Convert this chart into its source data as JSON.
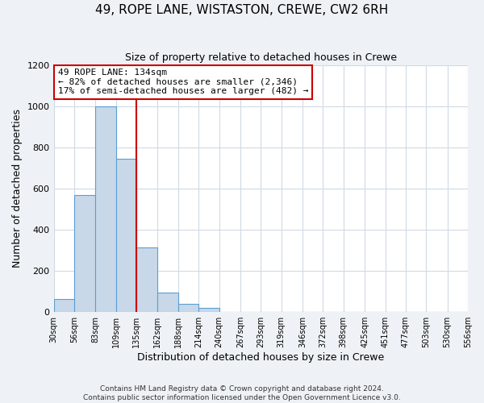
{
  "title": "49, ROPE LANE, WISTASTON, CREWE, CW2 6RH",
  "subtitle": "Size of property relative to detached houses in Crewe",
  "xlabel": "Distribution of detached houses by size in Crewe",
  "ylabel": "Number of detached properties",
  "bar_color": "#c8d8e8",
  "bar_edge_color": "#5a9fd4",
  "bin_edges": [
    30,
    56,
    83,
    109,
    135,
    162,
    188,
    214,
    240,
    267,
    293,
    319,
    346,
    372,
    398,
    425,
    451,
    477,
    503,
    530,
    556
  ],
  "bin_labels": [
    "30sqm",
    "56sqm",
    "83sqm",
    "109sqm",
    "135sqm",
    "162sqm",
    "188sqm",
    "214sqm",
    "240sqm",
    "267sqm",
    "293sqm",
    "319sqm",
    "346sqm",
    "372sqm",
    "398sqm",
    "425sqm",
    "451sqm",
    "477sqm",
    "503sqm",
    "530sqm",
    "556sqm"
  ],
  "counts": [
    65,
    570,
    1000,
    745,
    315,
    95,
    40,
    20,
    0,
    0,
    0,
    0,
    0,
    0,
    0,
    0,
    0,
    0,
    0,
    0
  ],
  "property_line_x": 135,
  "annotation_title": "49 ROPE LANE: 134sqm",
  "annotation_line1": "← 82% of detached houses are smaller (2,346)",
  "annotation_line2": "17% of semi-detached houses are larger (482) →",
  "annotation_box_color": "#ffffff",
  "annotation_box_edge_color": "#cc0000",
  "vline_color": "#cc0000",
  "ylim": [
    0,
    1200
  ],
  "yticks": [
    0,
    200,
    400,
    600,
    800,
    1000,
    1200
  ],
  "footer1": "Contains HM Land Registry data © Crown copyright and database right 2024.",
  "footer2": "Contains public sector information licensed under the Open Government Licence v3.0.",
  "background_color": "#eef2f6",
  "plot_bg_color": "#ffffff",
  "grid_color": "#d0dae4"
}
